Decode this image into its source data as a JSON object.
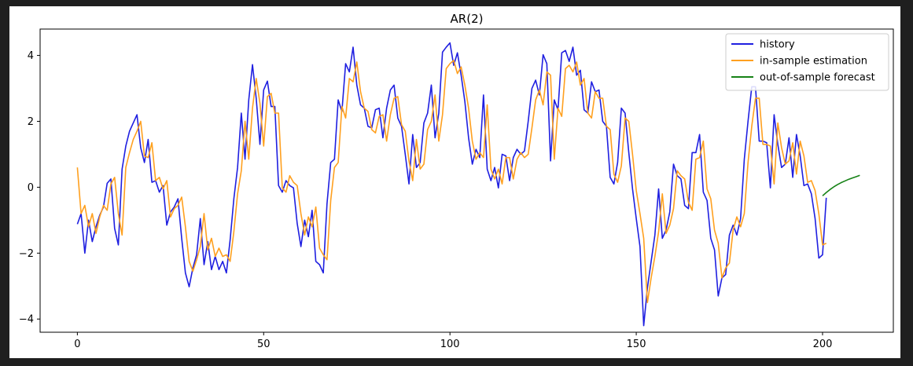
{
  "chart_data": {
    "type": "line",
    "title": "AR(2)",
    "xlabel": "",
    "ylabel": "",
    "xlim": [
      -10,
      219
    ],
    "ylim": [
      -4.4,
      4.8
    ],
    "xticks": [
      0,
      50,
      100,
      150,
      200
    ],
    "yticks": [
      -4,
      -2,
      0,
      2,
      4
    ],
    "grid": false,
    "legend_position": "top-right",
    "series": [
      {
        "name": "history",
        "color": "#1f1fe0",
        "x_start": 0,
        "values": [
          -1.12,
          -0.8,
          -2.0,
          -1.0,
          -1.65,
          -1.2,
          -0.85,
          -0.6,
          0.12,
          0.25,
          -1.25,
          -1.75,
          0.55,
          1.25,
          1.7,
          1.95,
          2.2,
          1.2,
          0.75,
          1.45,
          0.15,
          0.2,
          -0.15,
          0.05,
          -1.15,
          -0.75,
          -0.6,
          -0.35,
          -1.55,
          -2.6,
          -3.02,
          -2.45,
          -2.05,
          -0.95,
          -2.35,
          -1.65,
          -2.5,
          -2.1,
          -2.5,
          -2.25,
          -2.6,
          -1.6,
          -0.35,
          0.6,
          2.25,
          0.85,
          2.65,
          3.72,
          2.7,
          1.3,
          2.95,
          3.22,
          2.45,
          2.45,
          0.05,
          -0.15,
          0.2,
          0.05,
          -0.02,
          -1.1,
          -1.8,
          -1.0,
          -1.5,
          -0.7,
          -2.25,
          -2.35,
          -2.6,
          -0.5,
          0.75,
          0.85,
          2.65,
          2.3,
          3.75,
          3.5,
          4.25,
          3.1,
          2.5,
          2.4,
          1.85,
          1.8,
          2.35,
          2.4,
          1.5,
          2.4,
          2.95,
          3.1,
          2.1,
          1.85,
          1.0,
          0.1,
          1.6,
          0.6,
          0.75,
          1.95,
          2.25,
          3.1,
          1.5,
          2.25,
          4.1,
          4.25,
          4.38,
          3.7,
          4.08,
          3.4,
          2.6,
          1.5,
          0.7,
          1.15,
          0.9,
          2.8,
          0.55,
          0.2,
          0.6,
          -0.02,
          1.0,
          0.95,
          0.2,
          0.9,
          1.15,
          1.0,
          1.1,
          2.0,
          3.0,
          3.25,
          2.8,
          4.02,
          3.75,
          0.8,
          2.65,
          2.35,
          4.08,
          4.15,
          3.82,
          4.25,
          3.4,
          3.55,
          2.35,
          2.25,
          3.2,
          2.9,
          2.95,
          2.0,
          1.85,
          0.3,
          0.1,
          0.75,
          2.4,
          2.25,
          1.05,
          -0.05,
          -0.95,
          -1.8,
          -4.2,
          -3.05,
          -2.25,
          -1.45,
          -0.05,
          -1.55,
          -1.3,
          -0.75,
          0.7,
          0.35,
          0.25,
          -0.55,
          -0.65,
          1.05,
          1.05,
          1.6,
          -0.15,
          -0.4,
          -1.55,
          -1.9,
          -3.3,
          -2.75,
          -2.65,
          -1.45,
          -1.15,
          -1.45,
          -0.95,
          0.85,
          2.0,
          3.05,
          3.05,
          1.4,
          1.4,
          1.35,
          -0.02,
          2.2,
          1.3,
          0.6,
          0.7,
          1.5,
          0.3,
          1.6,
          0.95,
          0.05,
          0.1,
          -0.2,
          -0.95,
          -2.15,
          -2.05,
          -0.32
        ]
      },
      {
        "name": "in-sample estimation",
        "color": "#ffa01f",
        "x_start": 0,
        "values": [
          0.6,
          -0.8,
          -0.55,
          -1.2,
          -0.8,
          -1.4,
          -0.9,
          -0.55,
          -0.7,
          0.1,
          0.3,
          -0.8,
          -1.45,
          0.6,
          1.05,
          1.45,
          1.7,
          2.0,
          0.95,
          0.9,
          1.35,
          0.2,
          0.3,
          -0.05,
          0.2,
          -0.9,
          -0.65,
          -0.55,
          -0.3,
          -1.2,
          -2.25,
          -2.55,
          -2.2,
          -1.8,
          -0.8,
          -1.9,
          -1.55,
          -2.1,
          -1.85,
          -2.1,
          -2.05,
          -2.25,
          -1.35,
          -0.2,
          0.5,
          2.0,
          0.85,
          2.4,
          3.3,
          2.55,
          1.25,
          2.75,
          2.85,
          2.25,
          2.25,
          -0.02,
          -0.15,
          0.35,
          0.15,
          0.05,
          -0.8,
          -1.45,
          -0.9,
          -1.2,
          -0.6,
          -1.85,
          -2.05,
          -2.2,
          -0.4,
          0.6,
          0.75,
          2.45,
          2.1,
          3.3,
          3.2,
          3.8,
          2.9,
          2.4,
          2.3,
          1.75,
          1.65,
          2.15,
          2.2,
          1.4,
          2.2,
          2.7,
          2.75,
          1.9,
          1.7,
          0.8,
          0.2,
          1.45,
          0.55,
          0.7,
          1.75,
          2.0,
          2.8,
          1.4,
          2.2,
          3.6,
          3.75,
          3.85,
          3.45,
          3.65,
          3.1,
          2.4,
          1.4,
          0.85,
          1.05,
          0.9,
          2.5,
          0.55,
          0.25,
          0.55,
          0.1,
          0.9,
          0.9,
          0.25,
          0.85,
          1.05,
          0.9,
          1.0,
          1.8,
          2.65,
          2.95,
          2.5,
          3.5,
          3.4,
          0.85,
          2.4,
          2.15,
          3.6,
          3.7,
          3.5,
          3.8,
          3.1,
          3.3,
          2.25,
          2.1,
          2.9,
          2.7,
          2.7,
          1.85,
          1.75,
          0.4,
          0.15,
          0.65,
          2.1,
          2.0,
          1.0,
          -0.1,
          -0.8,
          -1.55,
          -3.5,
          -2.75,
          -2.1,
          -1.35,
          -0.2,
          -1.4,
          -1.15,
          -0.65,
          0.5,
          0.35,
          0.25,
          -0.45,
          -0.7,
          0.85,
          0.9,
          1.4,
          -0.05,
          -0.35,
          -1.3,
          -1.7,
          -2.75,
          -2.45,
          -2.3,
          -1.3,
          -0.9,
          -1.2,
          -0.8,
          0.75,
          1.85,
          2.7,
          2.7,
          1.3,
          1.3,
          1.25,
          0.1,
          1.95,
          1.2,
          0.7,
          0.8,
          1.35,
          0.4,
          1.4,
          0.95,
          0.15,
          0.2,
          -0.1,
          -0.8,
          -1.75,
          -1.7
        ]
      },
      {
        "name": "out-of-sample forecast",
        "color": "#168216",
        "x_start": 200,
        "values": [
          -0.26,
          -0.16,
          -0.07,
          0.01,
          0.08,
          0.14,
          0.19,
          0.24,
          0.28,
          0.32,
          0.36
        ]
      }
    ]
  }
}
